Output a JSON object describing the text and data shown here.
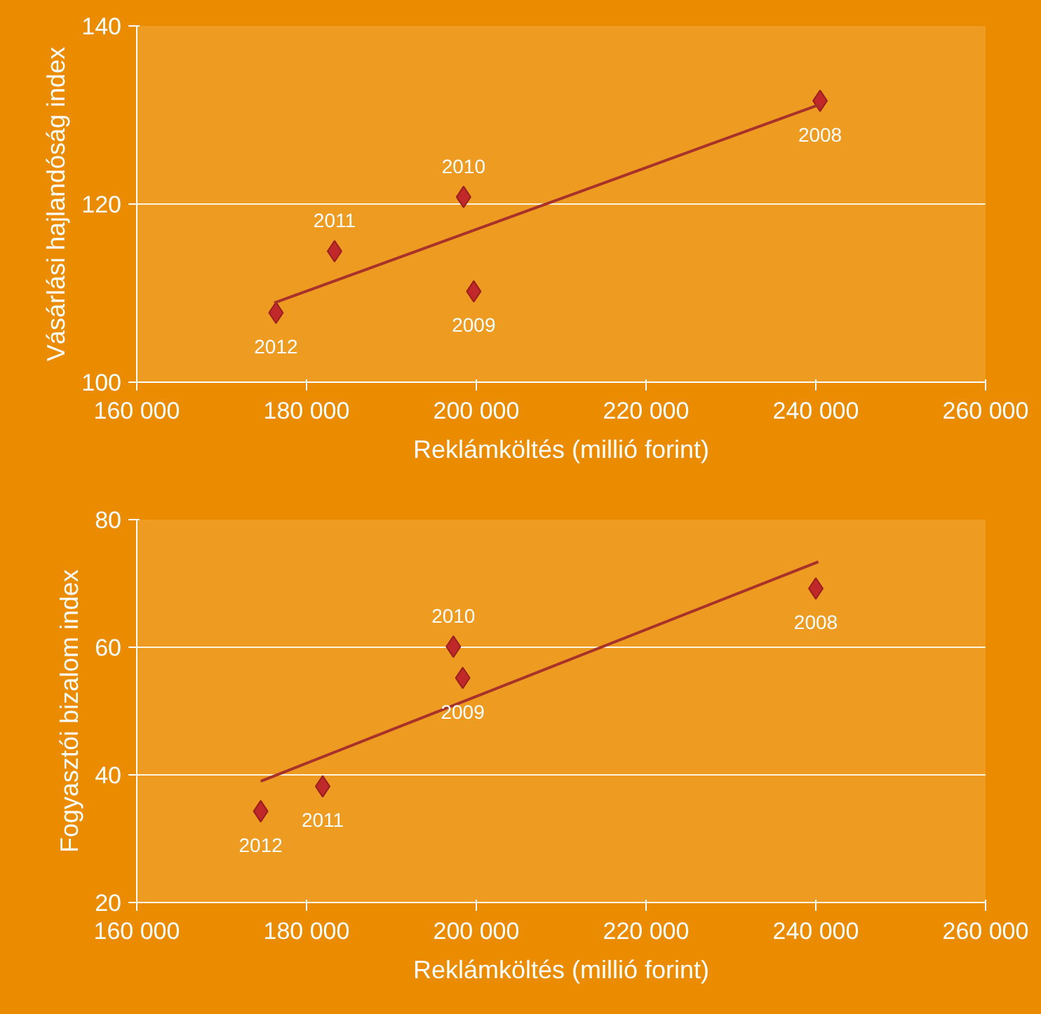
{
  "chart_data": [
    {
      "type": "scatter",
      "xlabel": "Reklámköltés (millió forint)",
      "ylabel": "Vásárlási hajlandóság index",
      "x": [
        240500,
        199700,
        198500,
        183300,
        176400
      ],
      "grid": "y",
      "series": [
        {
          "color": "#c0282a",
          "marker": "diamond",
          "values": [
            131.6,
            110.2,
            120.8,
            114.7,
            107.8
          ]
        },
        {
          "type": "line",
          "color": "#a8322a",
          "x": [
            176200,
            240500
          ],
          "values": [
            108.9,
            131.2
          ]
        }
      ],
      "annotations": [
        {
          "text": "2008",
          "x": 240500,
          "y": 131.6
        },
        {
          "text": "2009",
          "x": 199700,
          "y": 110.2
        },
        {
          "text": "2010",
          "x": 198500,
          "y": 120.8
        },
        {
          "text": "2011",
          "x": 183300,
          "y": 114.7
        },
        {
          "text": "2012",
          "x": 176400,
          "y": 107.8
        }
      ],
      "xlim": [
        160000,
        260000
      ],
      "xticks": [
        {
          "value": 160000,
          "label": "160 000"
        },
        {
          "value": 180000,
          "label": "180 000"
        },
        {
          "value": 200000,
          "label": "200 000"
        },
        {
          "value": 220000,
          "label": "220 000"
        },
        {
          "value": 240000,
          "label": "240 000"
        },
        {
          "value": 260000,
          "label": "260 000"
        }
      ],
      "ylim": [
        100,
        140
      ],
      "yticks": [
        100,
        120,
        140
      ]
    },
    {
      "type": "scatter",
      "xlabel": "Reklámköltés (millió forint)",
      "ylabel": "Fogyasztói bizalom index",
      "x": [
        240000,
        198400,
        197300,
        181900,
        174600
      ],
      "grid": "y",
      "series": [
        {
          "color": "#c0282a",
          "marker": "diamond",
          "values": [
            69.2,
            55.2,
            60.1,
            38.2,
            34.3
          ]
        },
        {
          "type": "line",
          "color": "#a8322a",
          "x": [
            174600,
            240300
          ],
          "values": [
            39.0,
            73.4
          ]
        }
      ],
      "annotations": [
        {
          "text": "2008",
          "x": 240000,
          "y": 69.2
        },
        {
          "text": "2009",
          "x": 198400,
          "y": 55.2
        },
        {
          "text": "2010",
          "x": 197300,
          "y": 60.1
        },
        {
          "text": "2011",
          "x": 181900,
          "y": 38.2
        },
        {
          "text": "2012",
          "x": 174600,
          "y": 34.3
        }
      ],
      "xlim": [
        160000,
        260000
      ],
      "xticks": [
        {
          "value": 160000,
          "label": "160 000"
        },
        {
          "value": 180000,
          "label": "180 000"
        },
        {
          "value": 200000,
          "label": "200 000"
        },
        {
          "value": 220000,
          "label": "220 000"
        },
        {
          "value": 240000,
          "label": "240 000"
        },
        {
          "value": 260000,
          "label": "260 000"
        }
      ],
      "ylim": [
        20,
        80
      ],
      "yticks": [
        20,
        40,
        60,
        80
      ]
    }
  ]
}
